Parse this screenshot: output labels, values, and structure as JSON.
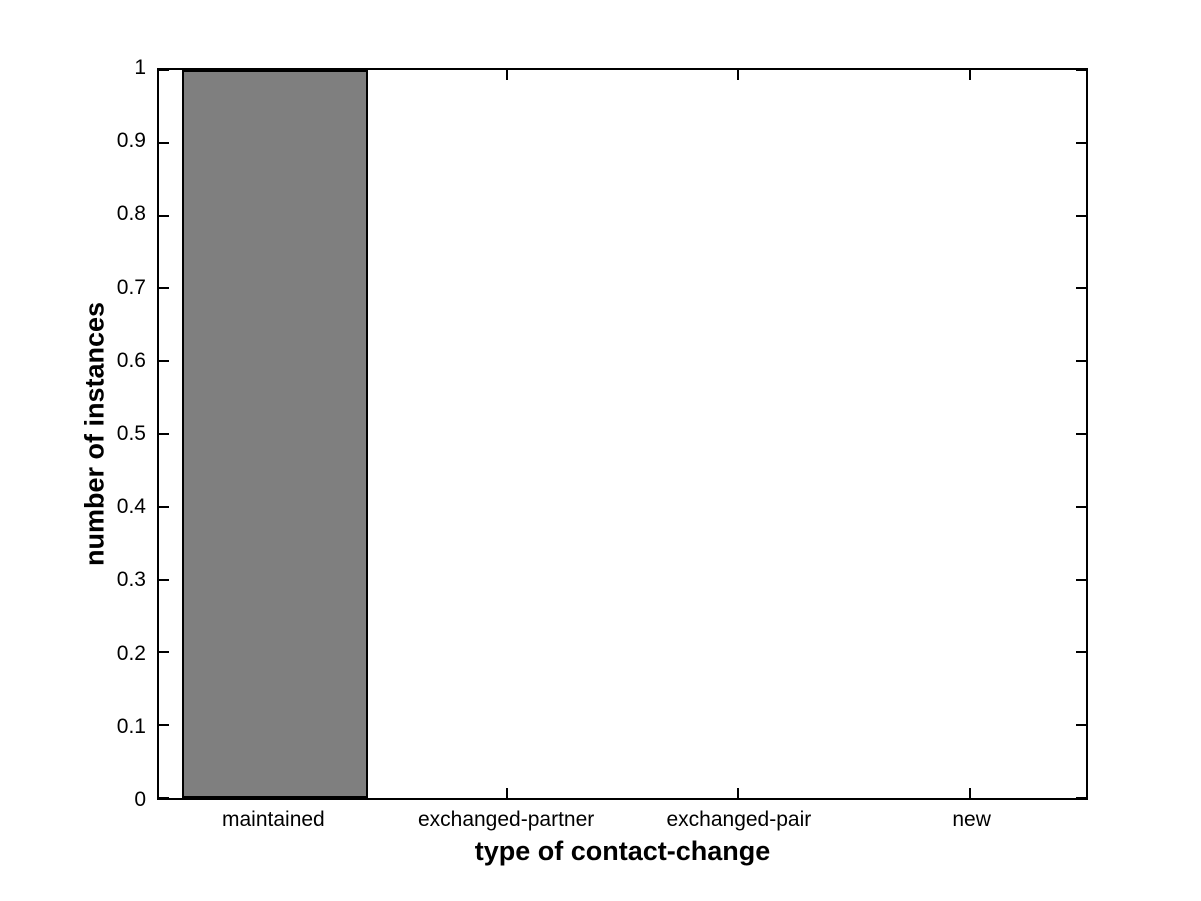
{
  "chart_data": {
    "type": "bar",
    "title": "",
    "xlabel": "type of contact-change",
    "ylabel": "number of instances",
    "categories": [
      "maintained",
      "exchanged-partner",
      "exchanged-pair",
      "new"
    ],
    "values": [
      1,
      0,
      0,
      0
    ],
    "ylim": [
      0,
      1
    ],
    "yticks": [
      0,
      0.1,
      0.2,
      0.3,
      0.4,
      0.5,
      0.6,
      0.7,
      0.8,
      0.9,
      1
    ],
    "ytick_labels": [
      "0",
      "0.1",
      "0.2",
      "0.3",
      "0.4",
      "0.5",
      "0.6",
      "0.7",
      "0.8",
      "0.9",
      "1"
    ],
    "bar_width_fraction": 0.8,
    "bar_color": "#7f7f7f",
    "bar_edge_color": "#000000",
    "axis_color": "#000000",
    "background_color": "#ffffff",
    "grid": "off",
    "legend": "none",
    "tick_direction": "in",
    "box": "on"
  }
}
